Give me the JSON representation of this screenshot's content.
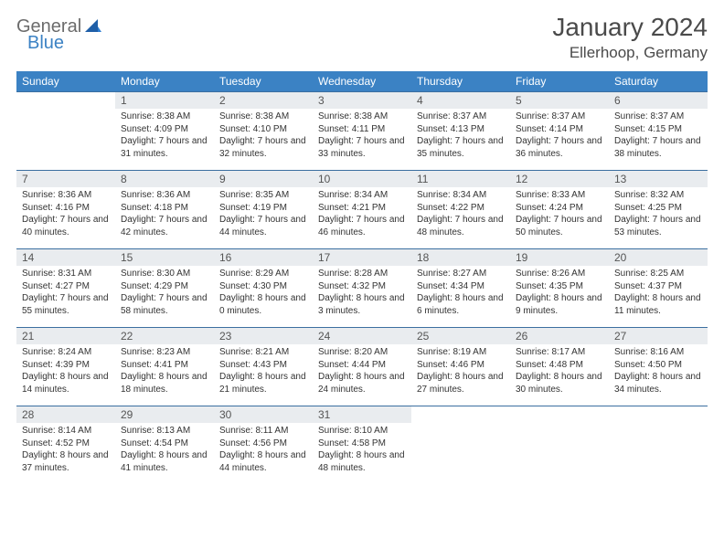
{
  "brand": {
    "part1": "General",
    "part2": "Blue"
  },
  "title": "January 2024",
  "location": "Ellerhoop, Germany",
  "weekdays": [
    "Sunday",
    "Monday",
    "Tuesday",
    "Wednesday",
    "Thursday",
    "Friday",
    "Saturday"
  ],
  "colors": {
    "header_bg": "#3b82c4",
    "header_text": "#ffffff",
    "daynum_bg": "#e9ecef",
    "border": "#3b6fa0",
    "text": "#333333"
  },
  "weeks": [
    [
      {
        "day": "",
        "sunrise": "",
        "sunset": "",
        "daylight": ""
      },
      {
        "day": "1",
        "sunrise": "Sunrise: 8:38 AM",
        "sunset": "Sunset: 4:09 PM",
        "daylight": "Daylight: 7 hours and 31 minutes."
      },
      {
        "day": "2",
        "sunrise": "Sunrise: 8:38 AM",
        "sunset": "Sunset: 4:10 PM",
        "daylight": "Daylight: 7 hours and 32 minutes."
      },
      {
        "day": "3",
        "sunrise": "Sunrise: 8:38 AM",
        "sunset": "Sunset: 4:11 PM",
        "daylight": "Daylight: 7 hours and 33 minutes."
      },
      {
        "day": "4",
        "sunrise": "Sunrise: 8:37 AM",
        "sunset": "Sunset: 4:13 PM",
        "daylight": "Daylight: 7 hours and 35 minutes."
      },
      {
        "day": "5",
        "sunrise": "Sunrise: 8:37 AM",
        "sunset": "Sunset: 4:14 PM",
        "daylight": "Daylight: 7 hours and 36 minutes."
      },
      {
        "day": "6",
        "sunrise": "Sunrise: 8:37 AM",
        "sunset": "Sunset: 4:15 PM",
        "daylight": "Daylight: 7 hours and 38 minutes."
      }
    ],
    [
      {
        "day": "7",
        "sunrise": "Sunrise: 8:36 AM",
        "sunset": "Sunset: 4:16 PM",
        "daylight": "Daylight: 7 hours and 40 minutes."
      },
      {
        "day": "8",
        "sunrise": "Sunrise: 8:36 AM",
        "sunset": "Sunset: 4:18 PM",
        "daylight": "Daylight: 7 hours and 42 minutes."
      },
      {
        "day": "9",
        "sunrise": "Sunrise: 8:35 AM",
        "sunset": "Sunset: 4:19 PM",
        "daylight": "Daylight: 7 hours and 44 minutes."
      },
      {
        "day": "10",
        "sunrise": "Sunrise: 8:34 AM",
        "sunset": "Sunset: 4:21 PM",
        "daylight": "Daylight: 7 hours and 46 minutes."
      },
      {
        "day": "11",
        "sunrise": "Sunrise: 8:34 AM",
        "sunset": "Sunset: 4:22 PM",
        "daylight": "Daylight: 7 hours and 48 minutes."
      },
      {
        "day": "12",
        "sunrise": "Sunrise: 8:33 AM",
        "sunset": "Sunset: 4:24 PM",
        "daylight": "Daylight: 7 hours and 50 minutes."
      },
      {
        "day": "13",
        "sunrise": "Sunrise: 8:32 AM",
        "sunset": "Sunset: 4:25 PM",
        "daylight": "Daylight: 7 hours and 53 minutes."
      }
    ],
    [
      {
        "day": "14",
        "sunrise": "Sunrise: 8:31 AM",
        "sunset": "Sunset: 4:27 PM",
        "daylight": "Daylight: 7 hours and 55 minutes."
      },
      {
        "day": "15",
        "sunrise": "Sunrise: 8:30 AM",
        "sunset": "Sunset: 4:29 PM",
        "daylight": "Daylight: 7 hours and 58 minutes."
      },
      {
        "day": "16",
        "sunrise": "Sunrise: 8:29 AM",
        "sunset": "Sunset: 4:30 PM",
        "daylight": "Daylight: 8 hours and 0 minutes."
      },
      {
        "day": "17",
        "sunrise": "Sunrise: 8:28 AM",
        "sunset": "Sunset: 4:32 PM",
        "daylight": "Daylight: 8 hours and 3 minutes."
      },
      {
        "day": "18",
        "sunrise": "Sunrise: 8:27 AM",
        "sunset": "Sunset: 4:34 PM",
        "daylight": "Daylight: 8 hours and 6 minutes."
      },
      {
        "day": "19",
        "sunrise": "Sunrise: 8:26 AM",
        "sunset": "Sunset: 4:35 PM",
        "daylight": "Daylight: 8 hours and 9 minutes."
      },
      {
        "day": "20",
        "sunrise": "Sunrise: 8:25 AM",
        "sunset": "Sunset: 4:37 PM",
        "daylight": "Daylight: 8 hours and 11 minutes."
      }
    ],
    [
      {
        "day": "21",
        "sunrise": "Sunrise: 8:24 AM",
        "sunset": "Sunset: 4:39 PM",
        "daylight": "Daylight: 8 hours and 14 minutes."
      },
      {
        "day": "22",
        "sunrise": "Sunrise: 8:23 AM",
        "sunset": "Sunset: 4:41 PM",
        "daylight": "Daylight: 8 hours and 18 minutes."
      },
      {
        "day": "23",
        "sunrise": "Sunrise: 8:21 AM",
        "sunset": "Sunset: 4:43 PM",
        "daylight": "Daylight: 8 hours and 21 minutes."
      },
      {
        "day": "24",
        "sunrise": "Sunrise: 8:20 AM",
        "sunset": "Sunset: 4:44 PM",
        "daylight": "Daylight: 8 hours and 24 minutes."
      },
      {
        "day": "25",
        "sunrise": "Sunrise: 8:19 AM",
        "sunset": "Sunset: 4:46 PM",
        "daylight": "Daylight: 8 hours and 27 minutes."
      },
      {
        "day": "26",
        "sunrise": "Sunrise: 8:17 AM",
        "sunset": "Sunset: 4:48 PM",
        "daylight": "Daylight: 8 hours and 30 minutes."
      },
      {
        "day": "27",
        "sunrise": "Sunrise: 8:16 AM",
        "sunset": "Sunset: 4:50 PM",
        "daylight": "Daylight: 8 hours and 34 minutes."
      }
    ],
    [
      {
        "day": "28",
        "sunrise": "Sunrise: 8:14 AM",
        "sunset": "Sunset: 4:52 PM",
        "daylight": "Daylight: 8 hours and 37 minutes."
      },
      {
        "day": "29",
        "sunrise": "Sunrise: 8:13 AM",
        "sunset": "Sunset: 4:54 PM",
        "daylight": "Daylight: 8 hours and 41 minutes."
      },
      {
        "day": "30",
        "sunrise": "Sunrise: 8:11 AM",
        "sunset": "Sunset: 4:56 PM",
        "daylight": "Daylight: 8 hours and 44 minutes."
      },
      {
        "day": "31",
        "sunrise": "Sunrise: 8:10 AM",
        "sunset": "Sunset: 4:58 PM",
        "daylight": "Daylight: 8 hours and 48 minutes."
      },
      {
        "day": "",
        "sunrise": "",
        "sunset": "",
        "daylight": ""
      },
      {
        "day": "",
        "sunrise": "",
        "sunset": "",
        "daylight": ""
      },
      {
        "day": "",
        "sunrise": "",
        "sunset": "",
        "daylight": ""
      }
    ]
  ]
}
